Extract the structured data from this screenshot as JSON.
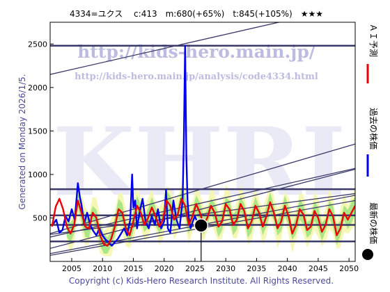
{
  "chart_data": {
    "type": "line",
    "title": "4334=ユクス　 c:413　m:680(+65%)　t:845(+105%)　★★★",
    "generated_label": "Generated on Monday 2026/1/5.",
    "copyright": "Copyright (c) Kids-Hero Research Institute. All Rights Reserved.",
    "watermark": {
      "url1": "http://kids-hero.main.jp/",
      "url2": "http://kids-hero.main.jp/analysis/code4334.html",
      "logo": "KHRI"
    },
    "right_legend": [
      {
        "label": "ＡＩ予測",
        "color": "#ee0000"
      },
      {
        "label": "過去の株価",
        "color": "#0000ee"
      },
      {
        "label": "最新の株価",
        "color": "#000000"
      }
    ],
    "xlim": [
      2001.5,
      2051
    ],
    "ylim": [
      0,
      2750
    ],
    "x_ticks": [
      2005,
      2010,
      2015,
      2020,
      2025,
      2030,
      2035,
      2040,
      2045,
      2050
    ],
    "y_ticks": [
      500,
      1000,
      1500,
      2000,
      2500
    ],
    "horizontal_levels": [
      2480,
      830,
      530,
      420,
      230
    ],
    "trend_lines": [
      {
        "x1": 2001.5,
        "y1": 2150,
        "x2": 2051,
        "y2": 2950
      },
      {
        "x1": 2001.5,
        "y1": 320,
        "x2": 2051,
        "y2": 1350
      },
      {
        "x1": 2001.5,
        "y1": 280,
        "x2": 2051,
        "y2": 1070
      },
      {
        "x1": 2001.5,
        "y1": 150,
        "x2": 2051,
        "y2": 1060
      },
      {
        "x1": 2001.5,
        "y1": 310,
        "x2": 2051,
        "y2": 780
      },
      {
        "x1": 2001.5,
        "y1": 90,
        "x2": 2051,
        "y2": 760
      },
      {
        "x1": 2001.5,
        "y1": 70,
        "x2": 2051,
        "y2": 700
      }
    ],
    "current_price": {
      "x": 2026.0,
      "y": 413
    },
    "series": [
      {
        "name": "過去の株価",
        "color": "#0000ee",
        "x": [
          2002.0,
          2002.5,
          2003.0,
          2003.5,
          2004.0,
          2004.5,
          2005.0,
          2005.5,
          2006.0,
          2006.3,
          2006.6,
          2007.0,
          2007.5,
          2008.0,
          2008.5,
          2009.0,
          2009.5,
          2010.0,
          2010.5,
          2011.0,
          2011.5,
          2012.0,
          2012.5,
          2013.0,
          2013.5,
          2014.0,
          2014.5,
          2014.8,
          2015.0,
          2015.3,
          2015.6,
          2016.0,
          2016.5,
          2017.0,
          2017.5,
          2018.0,
          2018.5,
          2019.0,
          2019.5,
          2020.0,
          2020.3,
          2020.6,
          2021.0,
          2021.5,
          2022.0,
          2022.5,
          2023.0,
          2023.2,
          2023.4,
          2023.6,
          2023.8,
          2024.0,
          2024.3,
          2024.6,
          2025.0,
          2025.5,
          2026.0
        ],
        "y": [
          430,
          480,
          330,
          360,
          520,
          460,
          600,
          480,
          900,
          750,
          650,
          430,
          560,
          420,
          350,
          300,
          380,
          300,
          250,
          220,
          180,
          220,
          260,
          320,
          380,
          300,
          480,
          1000,
          620,
          700,
          380,
          560,
          720,
          450,
          380,
          520,
          420,
          600,
          380,
          460,
          820,
          380,
          330,
          700,
          480,
          380,
          700,
          1400,
          2480,
          1200,
          700,
          500,
          380,
          450,
          520,
          430,
          413
        ]
      },
      {
        "name": "ＡＩ予測",
        "color": "#ee0000",
        "x": [
          2001.8,
          2002.4,
          2003.0,
          2003.6,
          2004.2,
          2004.8,
          2005.4,
          2006.0,
          2006.6,
          2007.2,
          2007.8,
          2008.4,
          2009.0,
          2009.6,
          2010.2,
          2010.8,
          2011.4,
          2012.0,
          2012.6,
          2013.2,
          2013.8,
          2014.4,
          2015.0,
          2015.6,
          2016.2,
          2016.8,
          2017.4,
          2018.0,
          2018.6,
          2019.2,
          2019.8,
          2020.4,
          2021.0,
          2021.6,
          2022.2,
          2022.8,
          2023.4,
          2024.0,
          2024.6,
          2025.2,
          2025.8,
          2026.4,
          2027.0,
          2027.6,
          2028.2,
          2028.8,
          2029.4,
          2030.0,
          2030.6,
          2031.2,
          2031.8,
          2032.4,
          2033.0,
          2033.6,
          2034.2,
          2034.8,
          2035.4,
          2036.0,
          2036.6,
          2037.2,
          2037.8,
          2038.4,
          2039.0,
          2039.6,
          2040.2,
          2040.8,
          2041.4,
          2042.0,
          2042.6,
          2043.2,
          2043.8,
          2044.4,
          2045.0,
          2045.6,
          2046.2,
          2046.8,
          2047.4,
          2048.0,
          2048.6,
          2049.2,
          2049.8,
          2050.4,
          2051.0
        ],
        "y": [
          400,
          630,
          720,
          600,
          400,
          320,
          420,
          700,
          560,
          400,
          380,
          560,
          500,
          300,
          200,
          180,
          260,
          400,
          600,
          560,
          380,
          300,
          460,
          640,
          560,
          420,
          500,
          620,
          520,
          400,
          480,
          700,
          640,
          480,
          540,
          720,
          640,
          420,
          520,
          660,
          560,
          420,
          500,
          640,
          560,
          400,
          460,
          660,
          600,
          420,
          480,
          660,
          580,
          380,
          460,
          640,
          560,
          400,
          520,
          680,
          560,
          380,
          460,
          640,
          520,
          320,
          420,
          600,
          540,
          360,
          400,
          580,
          500,
          340,
          420,
          600,
          520,
          300,
          380,
          560,
          480,
          560,
          640
        ]
      }
    ]
  }
}
